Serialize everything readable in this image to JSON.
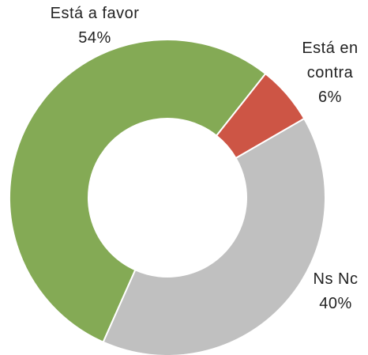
{
  "chart_data": {
    "type": "donut",
    "categories": [
      "Está a favor",
      "Está en contra",
      "Ns Nc"
    ],
    "values": [
      54,
      6,
      40
    ],
    "value_labels": [
      "54%",
      "6%",
      "40%"
    ],
    "colors": [
      "#84aa55",
      "#cd5545",
      "#c0c0c0"
    ]
  }
}
